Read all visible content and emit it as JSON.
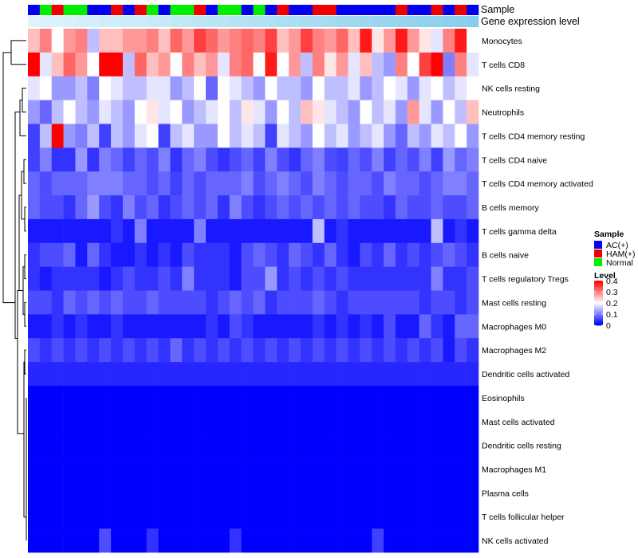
{
  "chart_data": {
    "type": "heatmap",
    "title": "",
    "annotation_labels": {
      "sample": "Sample",
      "gene_expression": "Gene expression level"
    },
    "rows": [
      "Monocytes",
      "T cells CD8",
      "NK cells resting",
      "Neutrophils",
      "T cells CD4 memory resting",
      "T cells CD4 naive",
      "T cells CD4 memory activated",
      "B cells memory",
      "T cells gamma delta",
      "B cells naive",
      "T cells regulatory  Tregs",
      "Mast cells resting",
      "Macrophages M0",
      "Macrophages M2",
      "Dendritic cells activated",
      "Eosinophils",
      "Mast cells activated",
      "Dendritic cells resting",
      "Macrophages M1",
      "Plasma cells",
      "T cells follicular helper",
      "NK cells activated"
    ],
    "sample_groups": [
      "AC(+)",
      "Normal",
      "HAM(+)",
      "Normal",
      "Normal",
      "AC(+)",
      "AC(+)",
      "HAM(+)",
      "AC(+)",
      "HAM(+)",
      "Normal",
      "AC(+)",
      "Normal",
      "Normal",
      "HAM(+)",
      "AC(+)",
      "Normal",
      "Normal",
      "AC(+)",
      "Normal",
      "AC(+)",
      "HAM(+)",
      "AC(+)",
      "AC(+)",
      "HAM(+)",
      "HAM(+)",
      "AC(+)",
      "AC(+)",
      "AC(+)",
      "AC(+)",
      "AC(+)",
      "HAM(+)",
      "AC(+)",
      "AC(+)",
      "HAM(+)",
      "AC(+)",
      "HAM(+)",
      "AC(+)"
    ],
    "gene_expression_level": [
      0.02,
      0.04,
      0.06,
      0.08,
      0.1,
      0.13,
      0.15,
      0.18,
      0.2,
      0.22,
      0.25,
      0.27,
      0.3,
      0.32,
      0.34,
      0.37,
      0.39,
      0.42,
      0.44,
      0.46,
      0.49,
      0.51,
      0.54,
      0.56,
      0.58,
      0.61,
      0.63,
      0.66,
      0.68,
      0.7,
      0.73,
      0.75,
      0.78,
      0.8,
      0.82,
      0.85,
      0.87,
      0.9
    ],
    "values": [
      [
        0.25,
        0.3,
        0.2,
        0.28,
        0.3,
        0.15,
        0.25,
        0.25,
        0.28,
        0.28,
        0.3,
        0.25,
        0.32,
        0.28,
        0.35,
        0.32,
        0.28,
        0.3,
        0.32,
        0.3,
        0.35,
        0.25,
        0.28,
        0.35,
        0.3,
        0.28,
        0.32,
        0.25,
        0.38,
        0.22,
        0.28,
        0.38,
        0.28,
        0.22,
        0.18,
        0.3,
        0.38,
        0.2
      ],
      [
        0.4,
        0.18,
        0.25,
        0.32,
        0.28,
        0.2,
        0.4,
        0.4,
        0.15,
        0.32,
        0.25,
        0.28,
        0.2,
        0.3,
        0.25,
        0.28,
        0.18,
        0.3,
        0.32,
        0.2,
        0.38,
        0.2,
        0.28,
        0.15,
        0.3,
        0.22,
        0.28,
        0.18,
        0.25,
        0.15,
        0.12,
        0.3,
        0.2,
        0.35,
        0.4,
        0.1,
        0.3,
        0.18
      ],
      [
        0.18,
        0.2,
        0.12,
        0.12,
        0.15,
        0.1,
        0.2,
        0.18,
        0.15,
        0.15,
        0.18,
        0.18,
        0.12,
        0.15,
        0.2,
        0.08,
        0.2,
        0.18,
        0.15,
        0.12,
        0.2,
        0.15,
        0.15,
        0.12,
        0.2,
        0.15,
        0.15,
        0.18,
        0.12,
        0.15,
        0.2,
        0.18,
        0.12,
        0.18,
        0.2,
        0.15,
        0.18,
        0.2
      ],
      [
        0.12,
        0.08,
        0.15,
        0.2,
        0.15,
        0.12,
        0.18,
        0.15,
        0.12,
        0.2,
        0.22,
        0.18,
        0.2,
        0.12,
        0.15,
        0.18,
        0.2,
        0.15,
        0.22,
        0.18,
        0.12,
        0.2,
        0.15,
        0.25,
        0.22,
        0.18,
        0.15,
        0.12,
        0.2,
        0.15,
        0.18,
        0.12,
        0.28,
        0.18,
        0.12,
        0.2,
        0.15,
        0.25
      ],
      [
        0.05,
        0.15,
        0.4,
        0.12,
        0.1,
        0.15,
        0.05,
        0.15,
        0.12,
        0.18,
        0.2,
        0.05,
        0.15,
        0.18,
        0.12,
        0.12,
        0.2,
        0.15,
        0.18,
        0.15,
        0.05,
        0.18,
        0.15,
        0.12,
        0.2,
        0.15,
        0.18,
        0.12,
        0.15,
        0.18,
        0.12,
        0.08,
        0.15,
        0.12,
        0.18,
        0.15,
        0.2,
        0.12
      ],
      [
        0.05,
        0.1,
        0.04,
        0.04,
        0.12,
        0.04,
        0.1,
        0.08,
        0.05,
        0.08,
        0.06,
        0.1,
        0.04,
        0.08,
        0.1,
        0.06,
        0.04,
        0.06,
        0.08,
        0.05,
        0.1,
        0.06,
        0.04,
        0.08,
        0.1,
        0.06,
        0.05,
        0.08,
        0.06,
        0.1,
        0.05,
        0.08,
        0.06,
        0.1,
        0.05,
        0.12,
        0.08,
        0.1
      ],
      [
        0.08,
        0.06,
        0.08,
        0.08,
        0.08,
        0.1,
        0.1,
        0.1,
        0.08,
        0.08,
        0.06,
        0.08,
        0.05,
        0.08,
        0.06,
        0.08,
        0.08,
        0.08,
        0.1,
        0.06,
        0.08,
        0.1,
        0.08,
        0.06,
        0.1,
        0.08,
        0.06,
        0.08,
        0.08,
        0.06,
        0.1,
        0.08,
        0.08,
        0.06,
        0.08,
        0.1,
        0.1,
        0.08
      ],
      [
        0.08,
        0.06,
        0.06,
        0.04,
        0.08,
        0.12,
        0.06,
        0.04,
        0.1,
        0.06,
        0.08,
        0.04,
        0.06,
        0.08,
        0.06,
        0.08,
        0.04,
        0.1,
        0.06,
        0.04,
        0.06,
        0.08,
        0.06,
        0.08,
        0.06,
        0.08,
        0.06,
        0.08,
        0.06,
        0.06,
        0.04,
        0.08,
        0.06,
        0.06,
        0.08,
        0.06,
        0.06,
        0.08
      ],
      [
        0.02,
        0.02,
        0.02,
        0.02,
        0.02,
        0.02,
        0.02,
        0.04,
        0.02,
        0.1,
        0.02,
        0.02,
        0.02,
        0.02,
        0.1,
        0.02,
        0.02,
        0.02,
        0.02,
        0.02,
        0.02,
        0.02,
        0.02,
        0.02,
        0.15,
        0.02,
        0.04,
        0.02,
        0.02,
        0.02,
        0.02,
        0.02,
        0.02,
        0.02,
        0.15,
        0.02,
        0.04,
        0.02
      ],
      [
        0.04,
        0.06,
        0.06,
        0.08,
        0.02,
        0.08,
        0.04,
        0.02,
        0.02,
        0.04,
        0.02,
        0.04,
        0.02,
        0.06,
        0.04,
        0.04,
        0.04,
        0.02,
        0.06,
        0.08,
        0.06,
        0.04,
        0.08,
        0.06,
        0.04,
        0.08,
        0.04,
        0.02,
        0.06,
        0.04,
        0.08,
        0.04,
        0.06,
        0.04,
        0.06,
        0.08,
        0.06,
        0.04
      ],
      [
        0.04,
        0.02,
        0.04,
        0.04,
        0.04,
        0.04,
        0.02,
        0.04,
        0.06,
        0.04,
        0.04,
        0.06,
        0.04,
        0.1,
        0.04,
        0.04,
        0.04,
        0.02,
        0.06,
        0.06,
        0.12,
        0.04,
        0.06,
        0.04,
        0.06,
        0.04,
        0.06,
        0.04,
        0.04,
        0.04,
        0.04,
        0.04,
        0.04,
        0.04,
        0.1,
        0.04,
        0.04,
        0.06
      ],
      [
        0.06,
        0.06,
        0.04,
        0.08,
        0.06,
        0.08,
        0.06,
        0.08,
        0.06,
        0.06,
        0.08,
        0.06,
        0.06,
        0.06,
        0.06,
        0.04,
        0.06,
        0.08,
        0.06,
        0.08,
        0.04,
        0.06,
        0.06,
        0.06,
        0.08,
        0.06,
        0.04,
        0.06,
        0.06,
        0.06,
        0.06,
        0.06,
        0.06,
        0.04,
        0.06,
        0.06,
        0.04,
        0.06
      ],
      [
        0.02,
        0.02,
        0.04,
        0.02,
        0.04,
        0.02,
        0.02,
        0.04,
        0.02,
        0.02,
        0.02,
        0.02,
        0.02,
        0.02,
        0.02,
        0.04,
        0.02,
        0.06,
        0.04,
        0.02,
        0.02,
        0.02,
        0.02,
        0.02,
        0.04,
        0.02,
        0.04,
        0.02,
        0.04,
        0.02,
        0.06,
        0.02,
        0.02,
        0.08,
        0.04,
        0.02,
        0.08,
        0.08
      ],
      [
        0.06,
        0.04,
        0.06,
        0.04,
        0.06,
        0.04,
        0.06,
        0.04,
        0.06,
        0.04,
        0.06,
        0.04,
        0.08,
        0.04,
        0.06,
        0.04,
        0.06,
        0.04,
        0.06,
        0.04,
        0.06,
        0.04,
        0.06,
        0.04,
        0.06,
        0.04,
        0.06,
        0.04,
        0.06,
        0.04,
        0.06,
        0.04,
        0.06,
        0.04,
        0.06,
        0.02,
        0.06,
        0.04
      ],
      [
        0.03,
        0.03,
        0.03,
        0.03,
        0.03,
        0.03,
        0.03,
        0.03,
        0.03,
        0.03,
        0.03,
        0.03,
        0.03,
        0.03,
        0.03,
        0.03,
        0.03,
        0.03,
        0.03,
        0.03,
        0.03,
        0.03,
        0.03,
        0.03,
        0.03,
        0.03,
        0.03,
        0.03,
        0.03,
        0.03,
        0.03,
        0.03,
        0.03,
        0.03,
        0.03,
        0.03,
        0.03,
        0.03
      ],
      [
        0,
        0,
        0,
        0,
        0,
        0,
        0,
        0,
        0,
        0,
        0,
        0,
        0,
        0,
        0,
        0,
        0,
        0,
        0,
        0,
        0,
        0,
        0,
        0,
        0,
        0,
        0,
        0,
        0,
        0,
        0,
        0,
        0,
        0,
        0,
        0,
        0,
        0
      ],
      [
        0,
        0,
        0,
        0,
        0,
        0,
        0,
        0,
        0,
        0,
        0,
        0,
        0,
        0,
        0,
        0,
        0,
        0,
        0,
        0,
        0,
        0,
        0,
        0,
        0,
        0,
        0,
        0,
        0,
        0,
        0,
        0,
        0,
        0,
        0,
        0,
        0,
        0
      ],
      [
        0,
        0,
        0,
        0,
        0,
        0,
        0,
        0,
        0,
        0,
        0,
        0,
        0,
        0,
        0,
        0,
        0,
        0,
        0,
        0,
        0,
        0,
        0,
        0,
        0,
        0,
        0,
        0,
        0,
        0,
        0,
        0,
        0,
        0,
        0,
        0,
        0,
        0
      ],
      [
        0,
        0,
        0,
        0,
        0,
        0,
        0,
        0,
        0,
        0,
        0,
        0,
        0,
        0,
        0,
        0,
        0,
        0,
        0,
        0,
        0,
        0,
        0,
        0,
        0,
        0,
        0,
        0,
        0,
        0,
        0,
        0,
        0,
        0,
        0,
        0,
        0,
        0
      ],
      [
        0,
        0,
        0,
        0,
        0,
        0,
        0,
        0,
        0,
        0,
        0,
        0,
        0,
        0,
        0,
        0,
        0,
        0,
        0,
        0,
        0,
        0,
        0,
        0,
        0,
        0,
        0,
        0,
        0,
        0,
        0,
        0,
        0,
        0,
        0,
        0,
        0,
        0
      ],
      [
        0,
        0,
        0,
        0,
        0,
        0,
        0,
        0,
        0,
        0,
        0,
        0,
        0,
        0,
        0,
        0,
        0,
        0,
        0,
        0,
        0,
        0,
        0,
        0,
        0,
        0,
        0,
        0,
        0,
        0,
        0,
        0,
        0,
        0,
        0,
        0,
        0,
        0
      ],
      [
        0,
        0,
        0,
        0,
        0,
        0,
        0.06,
        0,
        0,
        0,
        0.04,
        0,
        0,
        0,
        0,
        0,
        0,
        0.04,
        0,
        0,
        0,
        0,
        0,
        0,
        0,
        0,
        0,
        0,
        0,
        0.05,
        0,
        0,
        0,
        0,
        0,
        0,
        0,
        0
      ]
    ],
    "legend": {
      "sample_title": "Sample",
      "groups": [
        {
          "name": "AC(+)",
          "color": "#0000ee"
        },
        {
          "name": "HAM(+)",
          "color": "#ee0000"
        },
        {
          "name": "Normal",
          "color": "#00ee00"
        }
      ],
      "level_title": "Level",
      "level_ticks": [
        0.4,
        0.3,
        0.2,
        0.1,
        0
      ],
      "level_range": [
        0,
        0.4
      ],
      "position": "right"
    },
    "colors": {
      "low": "#0000ff",
      "mid": "#ffffff",
      "high": "#ff0000",
      "expr_low": "#e0f4fb",
      "expr_high": "#7ccbea"
    }
  }
}
